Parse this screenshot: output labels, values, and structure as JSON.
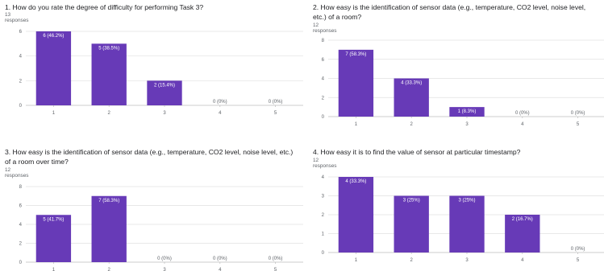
{
  "colors": {
    "bar": "#673ab7",
    "grid": "#e0e0e0",
    "axis": "#bdbdbd",
    "label_inside": "#ffffff",
    "label_outside": "#5f6368"
  },
  "chart_data": [
    {
      "type": "bar",
      "title": "1. How do you rate the degree of difficulty for performing Task 3?",
      "subtitle": "13 responses",
      "categories": [
        "1",
        "2",
        "3",
        "4",
        "5"
      ],
      "values": [
        6,
        5,
        2,
        0,
        0
      ],
      "data_labels": [
        "6 (46.2%)",
        "5 (38.5%)",
        "2 (15.4%)",
        "0 (0%)",
        "0 (0%)"
      ],
      "ylim": [
        0,
        6
      ],
      "yticks": [
        0,
        2,
        4,
        6
      ],
      "grid": true,
      "xlabel": "",
      "ylabel": ""
    },
    {
      "type": "bar",
      "title": "2. How easy is the identification of sensor data (e.g., temperature, CO2 level, noise level, etc.) of a room?",
      "subtitle": "12 responses",
      "categories": [
        "1",
        "2",
        "3",
        "4",
        "5"
      ],
      "values": [
        7,
        4,
        1,
        0,
        0
      ],
      "data_labels": [
        "7 (58.3%)",
        "4 (33.3%)",
        "1 (8.3%)",
        "0 (0%)",
        "0 (0%)"
      ],
      "ylim": [
        0,
        8
      ],
      "yticks": [
        0,
        2,
        4,
        6,
        8
      ],
      "grid": true,
      "xlabel": "",
      "ylabel": ""
    },
    {
      "type": "bar",
      "title": "3. How easy is the identification of sensor data (e.g., temperature, CO2 level, noise level, etc.) of a room over time?",
      "subtitle": "12 responses",
      "categories": [
        "1",
        "2",
        "3",
        "4",
        "5"
      ],
      "values": [
        5,
        7,
        0,
        0,
        0
      ],
      "data_labels": [
        "5 (41.7%)",
        "7 (58.3%)",
        "0 (0%)",
        "0 (0%)",
        "0 (0%)"
      ],
      "ylim": [
        0,
        8
      ],
      "yticks": [
        0,
        2,
        4,
        6,
        8
      ],
      "grid": true,
      "xlabel": "",
      "ylabel": ""
    },
    {
      "type": "bar",
      "title": "4. How easy it is to find the value of sensor at particular timestamp?",
      "subtitle": "12 responses",
      "categories": [
        "1",
        "2",
        "3",
        "4",
        "5"
      ],
      "values": [
        4,
        3,
        3,
        2,
        0
      ],
      "data_labels": [
        "4 (33.3%)",
        "3 (25%)",
        "3 (25%)",
        "2 (16.7%)",
        "0 (0%)"
      ],
      "ylim": [
        0,
        4
      ],
      "yticks": [
        0,
        1,
        2,
        3,
        4
      ],
      "grid": true,
      "xlabel": "",
      "ylabel": ""
    }
  ]
}
